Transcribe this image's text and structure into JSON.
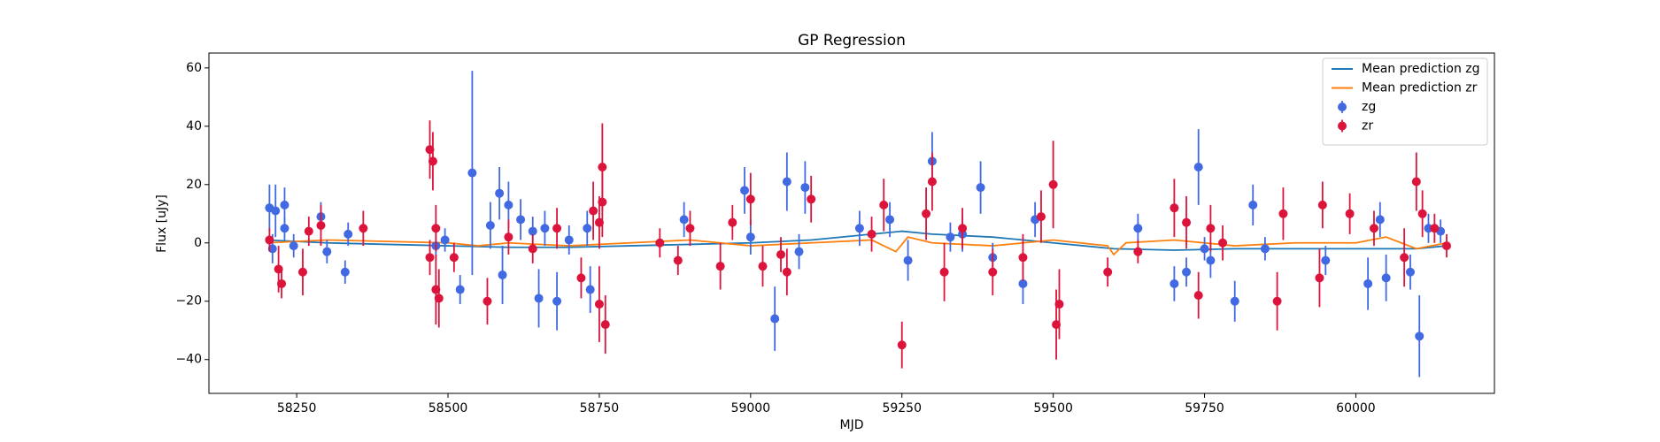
{
  "chart_data": {
    "type": "scatter",
    "title": "GP Regression",
    "x_label": "MJD",
    "y_label": "Flux [uJy]",
    "xlim": [
      58105,
      60229
    ],
    "ylim": [
      -51.6,
      65.1
    ],
    "xticks": [
      58250,
      58500,
      58750,
      59000,
      59250,
      59500,
      59750,
      60000
    ],
    "yticks": [
      {
        "value": -40,
        "label": "−40"
      },
      {
        "value": -20,
        "label": "−20"
      },
      0,
      20,
      40,
      60
    ],
    "legend": "upper right",
    "series": [
      {
        "name": "Mean prediction zg",
        "type": "line",
        "color": "#1f77b4",
        "x": [
          58200,
          58300,
          58400,
          58500,
          58600,
          58700,
          58800,
          58900,
          59000,
          59100,
          59200,
          59250,
          59300,
          59400,
          59500,
          59550,
          59600,
          59700,
          59800,
          59900,
          60000,
          60100,
          60150
        ],
        "values": [
          1,
          0,
          -0.5,
          -1,
          -1.5,
          -1.5,
          -1,
          -0.5,
          0,
          1,
          3,
          4,
          3,
          2,
          0,
          -1,
          -2,
          -2.5,
          -2,
          -2,
          -2,
          -2,
          -1
        ]
      },
      {
        "name": "Mean prediction zr",
        "type": "line",
        "color": "#ff7f0e",
        "x": [
          58200,
          58300,
          58400,
          58500,
          58550,
          58600,
          58700,
          58800,
          58900,
          59000,
          59100,
          59200,
          59240,
          59260,
          59300,
          59400,
          59500,
          59590,
          59600,
          59620,
          59700,
          59800,
          59900,
          60000,
          60050,
          60100,
          60150
        ],
        "values": [
          0,
          1,
          0.5,
          0,
          -1,
          0,
          -1,
          0,
          1,
          -1,
          0,
          1,
          -3,
          2,
          0,
          -1,
          1,
          -1,
          -4,
          0,
          1,
          -1,
          0,
          0,
          2,
          -2,
          0
        ]
      },
      {
        "name": "zg",
        "type": "errorbar",
        "color": "#4169e1",
        "x": [
          58205,
          58210,
          58215,
          58230,
          58230,
          58245,
          58290,
          58300,
          58330,
          58335,
          58480,
          58495,
          58520,
          58540,
          58570,
          58585,
          58590,
          58600,
          58620,
          58640,
          58650,
          58660,
          58680,
          58700,
          58735,
          58730,
          58890,
          58990,
          59000,
          59040,
          59060,
          59080,
          59090,
          59180,
          59230,
          59260,
          59300,
          59330,
          59350,
          59380,
          59400,
          59450,
          59470,
          59640,
          59700,
          59720,
          59740,
          59760,
          59800,
          59830,
          59850,
          59950,
          60020,
          60040,
          60050,
          60090,
          60105,
          60120,
          60140,
          59750
        ],
        "values": [
          12,
          -2,
          11,
          13,
          5,
          -1,
          9,
          -3,
          -10,
          3,
          -1,
          1,
          -16,
          24,
          6,
          17,
          -11,
          13,
          8,
          4,
          -19,
          5,
          -20,
          1,
          -16,
          5,
          8,
          18,
          2,
          -26,
          21,
          -3,
          19,
          5,
          8,
          -6,
          28,
          2,
          3,
          19,
          -5,
          -14,
          8,
          5,
          -14,
          -10,
          26,
          -6,
          -20,
          13,
          -2,
          -6,
          -14,
          8,
          -12,
          -10,
          -32,
          5,
          4,
          -2
        ],
        "errors": [
          8,
          5,
          9,
          6,
          4,
          4,
          5,
          4,
          4,
          4,
          5,
          4,
          5,
          35,
          8,
          9,
          10,
          8,
          7,
          5,
          10,
          6,
          10,
          5,
          8,
          6,
          6,
          8,
          6,
          11,
          10,
          6,
          9,
          6,
          6,
          7,
          10,
          5,
          6,
          9,
          5,
          7,
          6,
          5,
          6,
          5,
          13,
          6,
          7,
          7,
          4,
          5,
          9,
          6,
          8,
          6,
          14,
          5,
          4,
          4
        ]
      },
      {
        "name": "zr",
        "type": "errorbar",
        "color": "#dc143c",
        "x": [
          58205,
          58220,
          58225,
          58260,
          58270,
          58290,
          58360,
          58470,
          58475,
          58470,
          58480,
          58485,
          58480,
          58510,
          58565,
          58600,
          58640,
          58680,
          58720,
          58740,
          58750,
          58755,
          58760,
          58755,
          58750,
          58850,
          58880,
          58900,
          58950,
          58970,
          59000,
          59020,
          59050,
          59060,
          59100,
          59200,
          59220,
          59250,
          59290,
          59300,
          59320,
          59350,
          59400,
          59450,
          59480,
          59500,
          59505,
          59510,
          59590,
          59640,
          59700,
          59720,
          59740,
          59760,
          59780,
          59870,
          59880,
          59940,
          59945,
          59990,
          60030,
          60080,
          60100,
          60110,
          60130,
          60150
        ],
        "values": [
          1,
          -9,
          -14,
          -10,
          4,
          6,
          5,
          32,
          28,
          -5,
          -16,
          -19,
          5,
          -5,
          -20,
          2,
          -2,
          5,
          -12,
          11,
          -21,
          26,
          -28,
          14,
          7,
          0,
          -6,
          5,
          -8,
          7,
          15,
          -8,
          -4,
          -10,
          15,
          3,
          13,
          -35,
          10,
          21,
          -10,
          5,
          -10,
          -5,
          9,
          20,
          -28,
          -21,
          -10,
          -3,
          12,
          7,
          -18,
          5,
          0,
          -20,
          10,
          -12,
          13,
          10,
          5,
          -5,
          21,
          10,
          5,
          -1
        ],
        "errors": [
          4,
          8,
          5,
          8,
          5,
          7,
          6,
          10,
          10,
          6,
          12,
          10,
          8,
          5,
          8,
          6,
          5,
          7,
          7,
          10,
          13,
          15,
          10,
          12,
          9,
          5,
          5,
          6,
          8,
          6,
          9,
          7,
          6,
          8,
          8,
          6,
          9,
          8,
          9,
          10,
          10,
          7,
          8,
          8,
          9,
          15,
          12,
          12,
          5,
          4,
          10,
          9,
          8,
          8,
          6,
          10,
          9,
          10,
          8,
          7,
          6,
          10,
          10,
          8,
          5,
          4
        ]
      }
    ]
  }
}
